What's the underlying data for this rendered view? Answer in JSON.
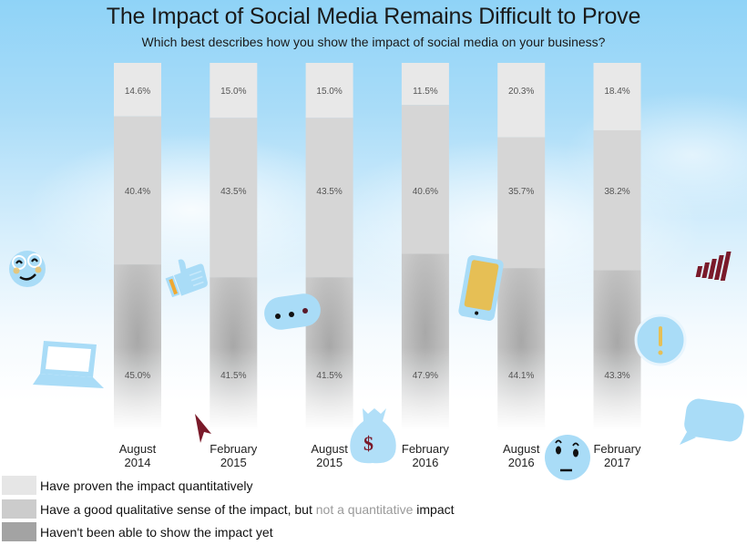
{
  "header": {
    "title": "The Impact of Social Media Remains Difficult to Prove",
    "subtitle": "Which best describes how you show the impact of social media on your business?"
  },
  "colors": {
    "proven": "#e8e8e8",
    "qualitative": "#d6d6d6",
    "not_shown": "#b8b8b8",
    "legend_proven": "#e6e6e6",
    "legend_qualitative": "#cccccc",
    "legend_not_shown": "#a3a3a3",
    "icon_blue": "#a9dcf7",
    "icon_accent": "#e8b84a",
    "icon_dark_red": "#7a1a2a"
  },
  "legend": {
    "items": [
      {
        "label": "Have proven the impact quantitatively"
      },
      {
        "label_main": "Have a good qualitative sense of the impact, but ",
        "label_faint": "not a quantitative",
        "label_end": " impact"
      },
      {
        "label": "Haven't been able to show the impact yet"
      }
    ]
  },
  "chart_data": {
    "type": "bar",
    "stacked": true,
    "title": "The Impact of Social Media Remains Difficult to Prove",
    "subtitle": "Which best describes how you show the impact of social media on your business?",
    "xlabel": "",
    "ylabel": "",
    "ylim": [
      0,
      100
    ],
    "grid": false,
    "legend_position": "bottom-left",
    "categories": [
      [
        "August",
        "2014"
      ],
      [
        "February",
        "2015"
      ],
      [
        "August",
        "2015"
      ],
      [
        "February",
        "2016"
      ],
      [
        "August",
        "2016"
      ],
      [
        "February",
        "2017"
      ]
    ],
    "series": [
      {
        "name": "Have proven the impact quantitatively",
        "values": [
          14.6,
          15.0,
          15.0,
          11.5,
          20.3,
          18.4
        ],
        "labels": [
          "14.6%",
          "15.0%",
          "15.0%",
          "11.5%",
          "20.3%",
          "18.4%"
        ]
      },
      {
        "name": "Have a good qualitative sense of the impact, but not a quantitative impact",
        "values": [
          40.4,
          43.5,
          43.5,
          40.6,
          35.7,
          38.2
        ],
        "labels": [
          "40.4%",
          "43.5%",
          "43.5%",
          "40.6%",
          "35.7%",
          "38.2%"
        ]
      },
      {
        "name": "Haven't been able to show the impact yet",
        "values": [
          45.0,
          41.5,
          41.5,
          47.9,
          44.1,
          43.3
        ],
        "labels": [
          "45.0%",
          "41.5%",
          "41.5%",
          "47.9%",
          "44.1%",
          "43.3%"
        ]
      }
    ]
  },
  "decorations": [
    {
      "icon": "smiley-glasses-icon"
    },
    {
      "icon": "laptop-icon"
    },
    {
      "icon": "thumbs-up-icon"
    },
    {
      "icon": "chat-bubble-dots-icon"
    },
    {
      "icon": "mouse-cursor-icon"
    },
    {
      "icon": "money-bag-icon",
      "symbol": "$"
    },
    {
      "icon": "smartphone-icon"
    },
    {
      "icon": "worried-face-icon"
    },
    {
      "icon": "exclamation-bubble-icon",
      "symbol": "!"
    },
    {
      "icon": "signal-bars-icon"
    },
    {
      "icon": "speech-bubble-icon"
    }
  ]
}
